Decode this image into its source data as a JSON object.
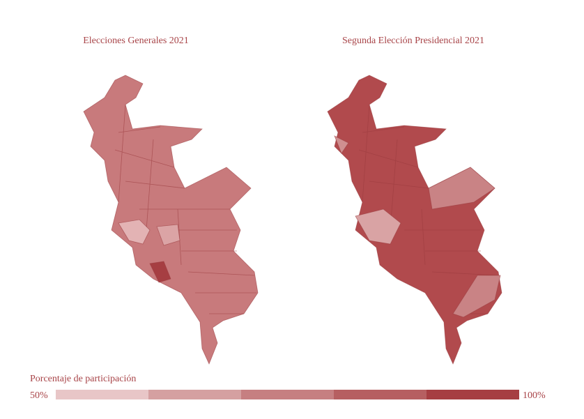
{
  "maps": [
    {
      "title": "Elecciones Generales 2021"
    },
    {
      "title": "Segunda Elección Presidencial 2021"
    }
  ],
  "legend": {
    "title": "Porcentaje de participación",
    "min": {
      "value": 50,
      "label": "50%"
    },
    "max": {
      "value": 100,
      "label": "100%"
    },
    "colors": [
      "#e8c6c7",
      "#d5a0a1",
      "#c67f81",
      "#b65f61",
      "#a63e42"
    ]
  }
}
